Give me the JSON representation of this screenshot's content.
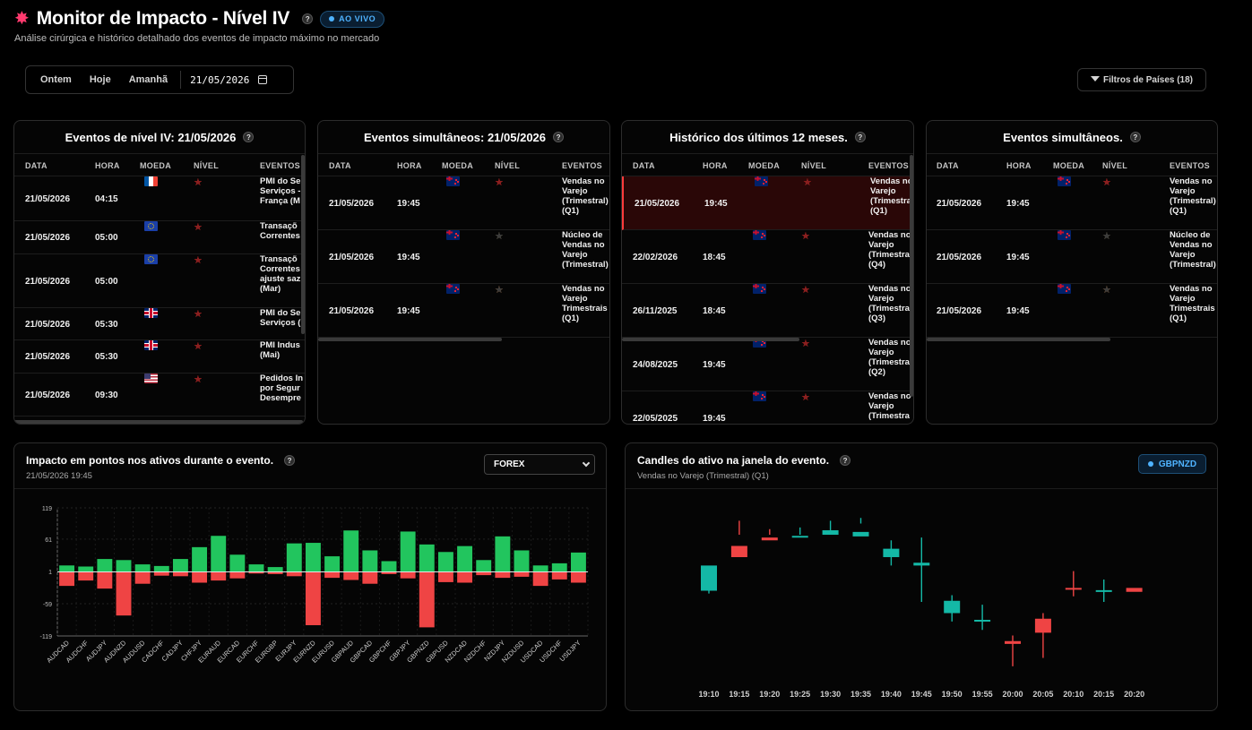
{
  "header": {
    "title": "Monitor de Impacto - Nível IV",
    "help": "?",
    "live_badge": "AO VIVO",
    "subtitle": "Análise cirúrgica e histórico detalhado dos eventos de impacto máximo no mercado",
    "accent": "#4fb3ff"
  },
  "toolbar": {
    "yesterday": "Ontem",
    "today": "Hoje",
    "tomorrow": "Amanhã",
    "date_value": "21/05/2026",
    "filter_label": "Filtros de Países (18)"
  },
  "columns": {
    "date": "DATA",
    "time": "HORA",
    "currency": "MOEDA",
    "level": "NÍVEL",
    "events": "EVENTOS"
  },
  "panels": {
    "p1": {
      "title": "Eventos de nível IV: 21/05/2026",
      "rows": [
        {
          "date": "21/05/2026",
          "time": "04:15",
          "flag": "fr",
          "stars": [
            "r",
            "r",
            "r",
            "r"
          ],
          "event": "PMI do Se\nServiços -\nFrança (M"
        },
        {
          "date": "21/05/2026",
          "time": "05:00",
          "flag": "eu",
          "stars": [
            "r",
            "r",
            "r",
            "r"
          ],
          "event": "Transaçõ\nCorrentes"
        },
        {
          "date": "21/05/2026",
          "time": "05:00",
          "flag": "eu",
          "stars": [
            "r",
            "r",
            "r",
            "r"
          ],
          "event": "Transaçõ\nCorrentes\najuste saz\n(Mar)"
        },
        {
          "date": "21/05/2026",
          "time": "05:30",
          "flag": "gb",
          "stars": [
            "r",
            "r",
            "r",
            "r"
          ],
          "event": "PMI do Se\nServiços ("
        },
        {
          "date": "21/05/2026",
          "time": "05:30",
          "flag": "gb",
          "stars": [
            "r",
            "r",
            "r",
            "r"
          ],
          "event": "PMI Indus\n(Mai)"
        },
        {
          "date": "21/05/2026",
          "time": "09:30",
          "flag": "us",
          "stars": [
            "r",
            "r",
            "r",
            "r"
          ],
          "event": "Pedidos In\npor Segur\nDesempre"
        }
      ]
    },
    "p2": {
      "title": "Eventos simultâneos: 21/05/2026",
      "rows": [
        {
          "date": "21/05/2026",
          "time": "19:45",
          "flag": "nz",
          "stars": [
            "r",
            "r",
            "r",
            "r"
          ],
          "event": "Vendas no\nVarejo\n(Trimestral)\n(Q1)"
        },
        {
          "date": "21/05/2026",
          "time": "19:45",
          "flag": "nz",
          "stars": [
            "y",
            "g",
            "g",
            "g"
          ],
          "event": "Núcleo de\nVendas no\nVarejo\n(Trimestral)"
        },
        {
          "date": "21/05/2026",
          "time": "19:45",
          "flag": "nz",
          "stars": [
            "o",
            "o",
            "g",
            "g"
          ],
          "event": "Vendas no\nVarejo\nTrimestrais\n(Q1)"
        }
      ]
    },
    "p3": {
      "title": "Histórico dos últimos 12 meses.",
      "rows": [
        {
          "date": "21/05/2026",
          "time": "19:45",
          "flag": "nz",
          "stars": [
            "r",
            "r",
            "r",
            "r"
          ],
          "event": "Vendas no\nVarejo\n(Trimestra\n(Q1)"
        },
        {
          "date": "22/02/2026",
          "time": "18:45",
          "flag": "nz",
          "stars": [
            "r",
            "r",
            "r",
            "r"
          ],
          "event": "Vendas no\nVarejo\n(Trimestra\n(Q4)"
        },
        {
          "date": "26/11/2025",
          "time": "18:45",
          "flag": "nz",
          "stars": [
            "r",
            "r",
            "r",
            "r"
          ],
          "event": "Vendas no\nVarejo\n(Trimestra\n(Q3)"
        },
        {
          "date": "24/08/2025",
          "time": "19:45",
          "flag": "nz",
          "stars": [
            "r",
            "r",
            "r",
            "r"
          ],
          "event": "Vendas no\nVarejo\n(Trimestra\n(Q2)"
        },
        {
          "date": "22/05/2025",
          "time": "19:45",
          "flag": "nz",
          "stars": [
            "r",
            "r",
            "r",
            "r"
          ],
          "event": "Vendas no\nVarejo\n(Trimestra"
        }
      ]
    },
    "p4": {
      "title": "Eventos simultâneos.",
      "rows": [
        {
          "date": "21/05/2026",
          "time": "19:45",
          "flag": "nz",
          "stars": [
            "r",
            "r",
            "r",
            "r"
          ],
          "event": "Vendas no\nVarejo\n(Trimestral)\n(Q1)"
        },
        {
          "date": "21/05/2026",
          "time": "19:45",
          "flag": "nz",
          "stars": [
            "y",
            "g",
            "g",
            "g"
          ],
          "event": "Núcleo de\nVendas no\nVarejo\n(Trimestral)"
        },
        {
          "date": "21/05/2026",
          "time": "19:45",
          "flag": "nz",
          "stars": [
            "o",
            "o",
            "g",
            "g"
          ],
          "event": "Vendas no\nVarejo\nTrimestrais\n(Q1)"
        }
      ]
    }
  },
  "impact": {
    "title": "Impacto em pontos nos ativos durante o evento.",
    "subtitle": "21/05/2026 19:45",
    "selector": "FOREX"
  },
  "candles": {
    "title": "Candles do ativo na janela do evento.",
    "subtitle": "Vendas no Varejo (Trimestral) (Q1)",
    "pair": "GBPNZD"
  },
  "chart_data": [
    {
      "type": "bar",
      "title": "Impacto em pontos nos ativos durante o evento.",
      "ylim": [
        -119,
        119
      ],
      "yticks": [
        119,
        61,
        1,
        -59,
        -119
      ],
      "categories": [
        "AUDCAD",
        "AUDCHF",
        "AUDJPY",
        "AUDNZD",
        "AUDUSD",
        "CADCHF",
        "CADJPY",
        "CHFJPY",
        "EURAUD",
        "EURCAD",
        "EURCHF",
        "EURGBP",
        "EURJPY",
        "EURNZD",
        "EURUSD",
        "GBPAUD",
        "GBPCAD",
        "GBPCHF",
        "GBPJPY",
        "GBPNZD",
        "GBPUSD",
        "NZDCAD",
        "NZDCHF",
        "NZDJPY",
        "NZDUSD",
        "USDCAD",
        "USDCHF",
        "USDJPY"
      ],
      "series": [
        {
          "values": [
            12,
            10,
            24,
            22,
            14,
            11,
            24,
            46,
            67,
            32,
            14,
            9,
            53,
            54,
            29,
            77,
            40,
            20,
            75,
            51,
            37,
            48,
            22,
            66,
            40,
            12,
            16,
            36
          ],
          "color": "#22c55e"
        },
        {
          "values": [
            -26,
            -16,
            -31,
            -81,
            -22,
            -7,
            -8,
            -20,
            -16,
            -12,
            -3,
            -4,
            -8,
            -99,
            -11,
            -15,
            -22,
            -4,
            -12,
            -103,
            -19,
            -20,
            -6,
            -11,
            -9,
            -26,
            -14,
            -20
          ],
          "color": "#ef4444"
        }
      ]
    },
    {
      "type": "candlestick",
      "title": "Candles do ativo na janela do evento.",
      "categories": [
        "19:10",
        "19:15",
        "19:20",
        "19:25",
        "19:30",
        "19:35",
        "19:40",
        "19:45",
        "19:50",
        "19:55",
        "20:00",
        "20:05",
        "20:10",
        "20:15",
        "20:20"
      ],
      "ohlc": [
        [
          100,
          145,
          95,
          140
        ],
        [
          180,
          160,
          225,
          200
        ],
        [
          195,
          190,
          210,
          200
        ],
        [
          195,
          198,
          213,
          200
        ],
        [
          200,
          208,
          225,
          200
        ],
        [
          197,
          205,
          230,
          220
        ],
        [
          160,
          175,
          190,
          145
        ],
        [
          145,
          150,
          195,
          80
        ],
        [
          60,
          82,
          92,
          45
        ],
        [
          45,
          48,
          75,
          30
        ],
        [
          10,
          5,
          20,
          -35
        ],
        [
          50,
          25,
          60,
          -20
        ],
        [
          105,
          103,
          135,
          90
        ],
        [
          100,
          101,
          120,
          80
        ],
        [
          105,
          98,
          102,
          100
        ]
      ]
    }
  ]
}
